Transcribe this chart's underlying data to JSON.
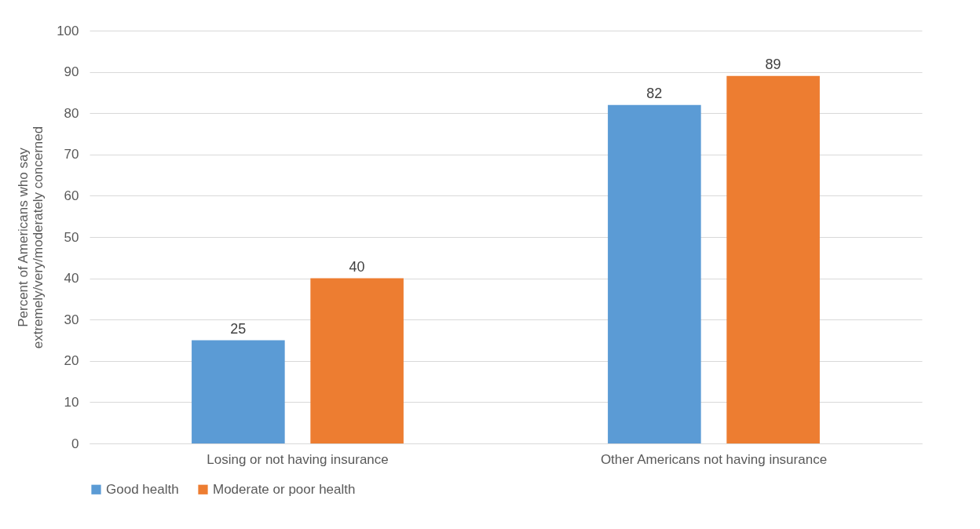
{
  "chart_data": {
    "type": "bar",
    "ylabel": "Percent of Americans who say\nextremely/very/moderately concerned",
    "categories": [
      "Losing or not having insurance",
      "Other Americans not having insurance"
    ],
    "series": [
      {
        "name": "Good health",
        "color": "#5b9bd5",
        "values": [
          25,
          82
        ]
      },
      {
        "name": "Moderate or poor health",
        "color": "#ed7d31",
        "values": [
          40,
          89
        ]
      }
    ],
    "ylim": [
      0,
      100
    ],
    "yticks": [
      0,
      10,
      20,
      30,
      40,
      50,
      60,
      70,
      80,
      90,
      100
    ],
    "grid": "y",
    "legend": "bottom",
    "data_labels": true
  }
}
